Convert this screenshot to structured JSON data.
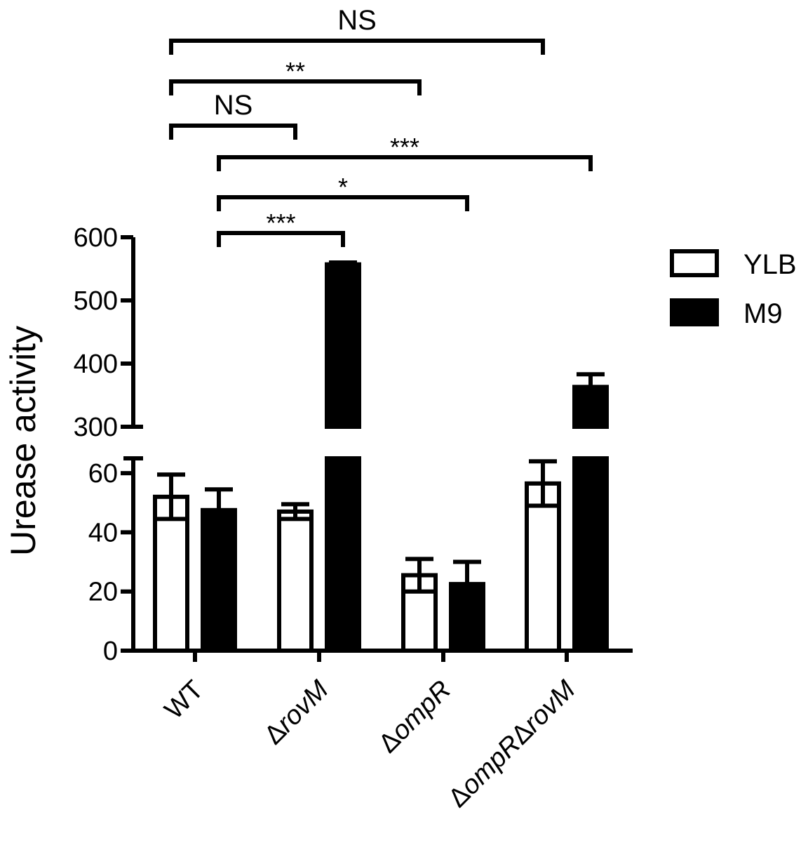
{
  "chart_data": {
    "type": "bar",
    "ylabel": "Urease activity",
    "categories": [
      "WT",
      "ΔrovM",
      "ΔompR",
      "ΔompRΔrovM"
    ],
    "categories_italic_part": [
      "",
      "rovM",
      "ompR",
      "ompR ... rovM"
    ],
    "series": [
      {
        "name": "YLB",
        "fill": "#ffffff",
        "stroke": "#000000",
        "values": [
          52,
          47,
          25.5,
          56.5
        ],
        "errors": [
          7.5,
          2.5,
          5.5,
          7.5
        ]
      },
      {
        "name": "M9",
        "fill": "#000000",
        "stroke": "#000000",
        "values": [
          47.5,
          557,
          22.5,
          363
        ],
        "errors": [
          7,
          3,
          7.5,
          20
        ]
      }
    ],
    "y_axis": {
      "broken": true,
      "lower_segment": {
        "range": [
          0,
          65
        ],
        "ticks": [
          0,
          20,
          40,
          60
        ]
      },
      "upper_segment": {
        "range": [
          300,
          600
        ],
        "ticks": [
          300,
          400,
          500,
          600
        ]
      }
    },
    "significance": [
      {
        "label": "NS",
        "from_category": 0,
        "from_series": 0,
        "to_category": 3,
        "to_series": 0,
        "level": 6
      },
      {
        "label": "**",
        "from_category": 0,
        "from_series": 0,
        "to_category": 2,
        "to_series": 0,
        "level": 5
      },
      {
        "label": "NS",
        "from_category": 0,
        "from_series": 0,
        "to_category": 1,
        "to_series": 0,
        "level": 4
      },
      {
        "label": "***",
        "from_category": 0,
        "from_series": 1,
        "to_category": 3,
        "to_series": 1,
        "level": 3
      },
      {
        "label": "*",
        "from_category": 0,
        "from_series": 1,
        "to_category": 2,
        "to_series": 1,
        "level": 2
      },
      {
        "label": "***",
        "from_category": 0,
        "from_series": 1,
        "to_category": 1,
        "to_series": 1,
        "level": 1
      }
    ],
    "legend": {
      "placement": "right",
      "entries": [
        "YLB",
        "M9"
      ]
    },
    "grid": false
  }
}
